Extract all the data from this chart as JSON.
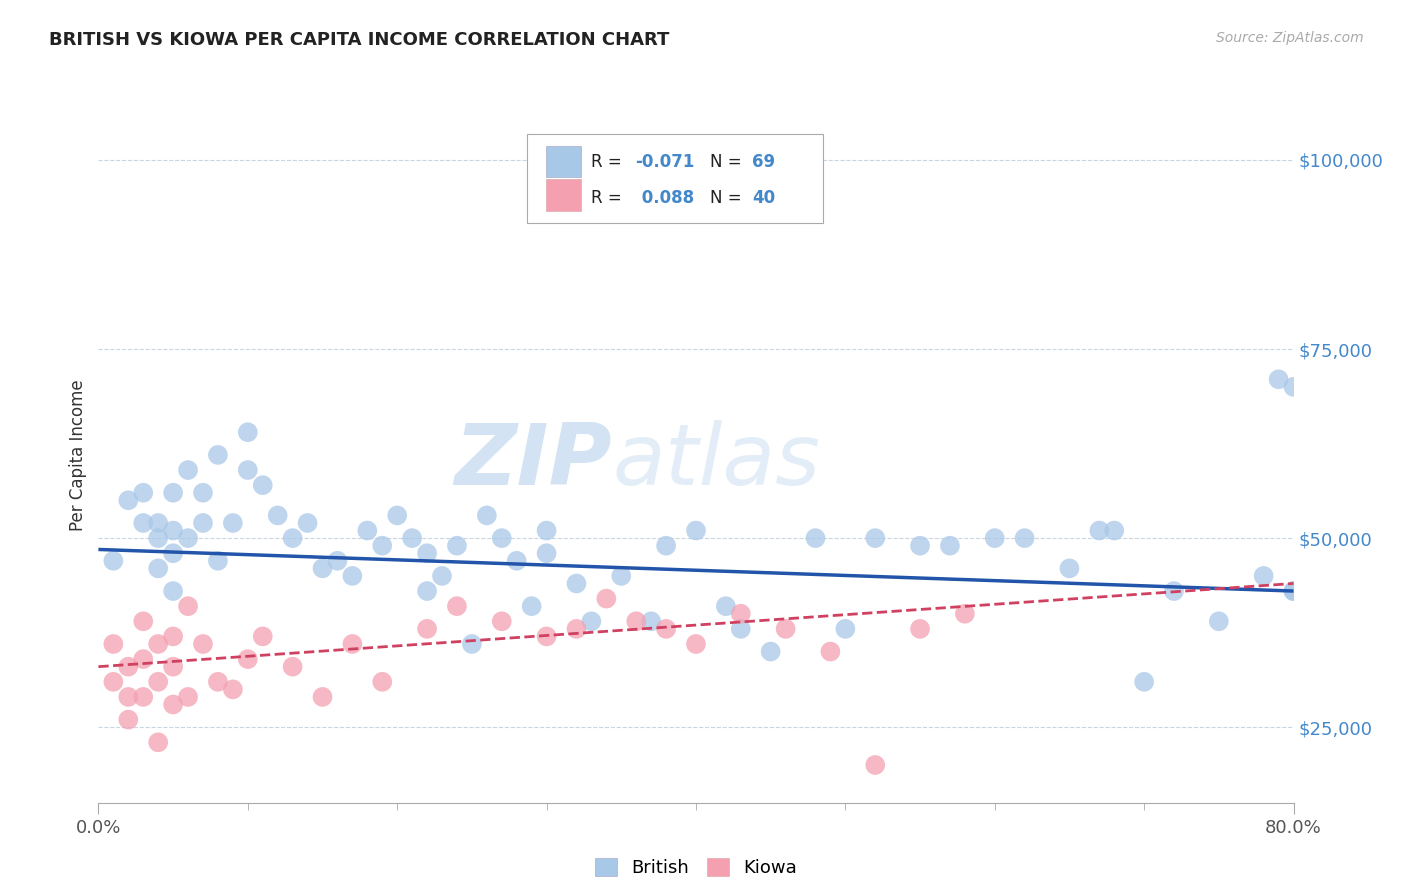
{
  "title": "BRITISH VS KIOWA PER CAPITA INCOME CORRELATION CHART",
  "source_text": "Source: ZipAtlas.com",
  "ylabel": "Per Capita Income",
  "xlim": [
    0.0,
    0.8
  ],
  "ylim": [
    15000,
    107000
  ],
  "yticks": [
    25000,
    50000,
    75000,
    100000
  ],
  "ytick_labels": [
    "$25,000",
    "$50,000",
    "$75,000",
    "$100,000"
  ],
  "xtick_labels": [
    "0.0%",
    "80.0%"
  ],
  "watermark_zip": "ZIP",
  "watermark_atlas": "atlas",
  "british_color": "#a8c8e8",
  "kiowa_color": "#f4a0b0",
  "british_line_color": "#2255aa",
  "kiowa_line_color": "#d04060",
  "british_x": [
    0.01,
    0.02,
    0.03,
    0.03,
    0.04,
    0.04,
    0.04,
    0.05,
    0.05,
    0.05,
    0.05,
    0.06,
    0.06,
    0.07,
    0.07,
    0.08,
    0.08,
    0.09,
    0.1,
    0.1,
    0.11,
    0.12,
    0.13,
    0.14,
    0.15,
    0.16,
    0.17,
    0.18,
    0.19,
    0.2,
    0.21,
    0.22,
    0.22,
    0.23,
    0.24,
    0.25,
    0.26,
    0.27,
    0.28,
    0.29,
    0.3,
    0.3,
    0.32,
    0.33,
    0.35,
    0.37,
    0.38,
    0.4,
    0.42,
    0.43,
    0.45,
    0.48,
    0.5,
    0.52,
    0.55,
    0.57,
    0.6,
    0.62,
    0.65,
    0.67,
    0.68,
    0.7,
    0.72,
    0.75,
    0.78,
    0.79,
    0.8,
    0.8,
    0.8
  ],
  "british_y": [
    47000,
    55000,
    56000,
    52000,
    52000,
    50000,
    46000,
    56000,
    51000,
    48000,
    43000,
    59000,
    50000,
    56000,
    52000,
    61000,
    47000,
    52000,
    64000,
    59000,
    57000,
    53000,
    50000,
    52000,
    46000,
    47000,
    45000,
    51000,
    49000,
    53000,
    50000,
    48000,
    43000,
    45000,
    49000,
    36000,
    53000,
    50000,
    47000,
    41000,
    51000,
    48000,
    44000,
    39000,
    45000,
    39000,
    49000,
    51000,
    41000,
    38000,
    35000,
    50000,
    38000,
    50000,
    49000,
    49000,
    50000,
    50000,
    46000,
    51000,
    51000,
    31000,
    43000,
    39000,
    45000,
    71000,
    43000,
    70000,
    43000
  ],
  "kiowa_x": [
    0.01,
    0.01,
    0.02,
    0.02,
    0.02,
    0.03,
    0.03,
    0.03,
    0.04,
    0.04,
    0.04,
    0.05,
    0.05,
    0.05,
    0.06,
    0.06,
    0.07,
    0.08,
    0.09,
    0.1,
    0.11,
    0.13,
    0.15,
    0.17,
    0.19,
    0.22,
    0.24,
    0.27,
    0.3,
    0.32,
    0.34,
    0.36,
    0.38,
    0.4,
    0.43,
    0.46,
    0.49,
    0.52,
    0.55,
    0.58
  ],
  "kiowa_y": [
    36000,
    31000,
    33000,
    29000,
    26000,
    34000,
    39000,
    29000,
    36000,
    31000,
    23000,
    37000,
    33000,
    28000,
    41000,
    29000,
    36000,
    31000,
    30000,
    34000,
    37000,
    33000,
    29000,
    36000,
    31000,
    38000,
    41000,
    39000,
    37000,
    38000,
    42000,
    39000,
    38000,
    36000,
    40000,
    38000,
    35000,
    20000,
    38000,
    40000
  ],
  "brit_line_x0": 0.0,
  "brit_line_y0": 48500,
  "brit_line_x1": 0.8,
  "brit_line_y1": 43000,
  "kiow_line_x0": 0.0,
  "kiow_line_y0": 33000,
  "kiow_line_x1": 0.8,
  "kiow_line_y1": 44000
}
